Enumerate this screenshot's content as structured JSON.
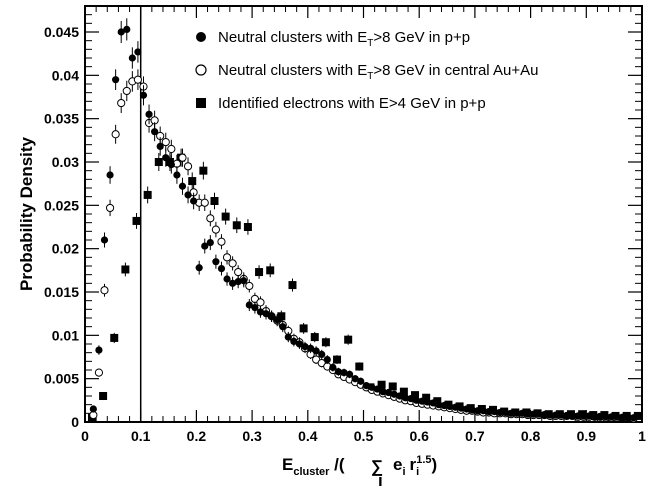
{
  "chart_data": {
    "type": "scatter",
    "title": "",
    "xlabel": "",
    "ylabel": "Probability Density",
    "xlim": [
      0,
      1
    ],
    "ylim": [
      0,
      0.048
    ],
    "x_ticks": [
      "0",
      "0.1",
      "0.2",
      "0.3",
      "0.4",
      "0.5",
      "0.6",
      "0.7",
      "0.8",
      "0.9",
      "1"
    ],
    "y_ticks": [
      "0",
      "0.005",
      "0.01",
      "0.015",
      "0.02",
      "0.025",
      "0.03",
      "0.035",
      "0.04",
      "0.045"
    ],
    "xlabel_parts": {
      "main": "E",
      "main_sub": "cluster",
      "slash": " /(",
      "sum": "∑",
      "sum_sub": "i",
      "e": "e",
      "e_sub": "i",
      "r": "r",
      "r_sub": "i",
      "r_sup": "1.5",
      "close": ")"
    },
    "vertical_line_x": 0.1,
    "legend_position": "top-right",
    "series": [
      {
        "name": "Neutral clusters with E_T>8 GeV in p+p",
        "legend_parts": [
          "Neutral clusters with E",
          "T",
          ">8 GeV in p+p"
        ],
        "marker": "filled-circle",
        "points": [
          [
            0.015,
            0.0015
          ],
          [
            0.025,
            0.0083
          ],
          [
            0.035,
            0.021
          ],
          [
            0.045,
            0.0285
          ],
          [
            0.055,
            0.0395
          ],
          [
            0.065,
            0.045
          ],
          [
            0.075,
            0.0453
          ],
          [
            0.085,
            0.042
          ],
          [
            0.095,
            0.0427
          ],
          [
            0.105,
            0.0377
          ],
          [
            0.115,
            0.0355
          ],
          [
            0.125,
            0.0335
          ],
          [
            0.135,
            0.0318
          ],
          [
            0.145,
            0.0305
          ],
          [
            0.155,
            0.0297
          ],
          [
            0.165,
            0.0285
          ],
          [
            0.175,
            0.0272
          ],
          [
            0.185,
            0.0262
          ],
          [
            0.195,
            0.0255
          ],
          [
            0.205,
            0.0178
          ],
          [
            0.215,
            0.0203
          ],
          [
            0.225,
            0.0207
          ],
          [
            0.235,
            0.0185
          ],
          [
            0.245,
            0.0177
          ],
          [
            0.255,
            0.0165
          ],
          [
            0.265,
            0.016
          ],
          [
            0.275,
            0.0162
          ],
          [
            0.285,
            0.0163
          ],
          [
            0.295,
            0.0135
          ],
          [
            0.305,
            0.0132
          ],
          [
            0.315,
            0.0127
          ],
          [
            0.325,
            0.0125
          ],
          [
            0.335,
            0.0122
          ],
          [
            0.345,
            0.0118
          ],
          [
            0.355,
            0.011
          ],
          [
            0.365,
            0.0098
          ],
          [
            0.375,
            0.0093
          ],
          [
            0.385,
            0.009
          ],
          [
            0.395,
            0.0087
          ],
          [
            0.405,
            0.0085
          ],
          [
            0.415,
            0.0082
          ],
          [
            0.425,
            0.0078
          ],
          [
            0.435,
            0.0072
          ],
          [
            0.445,
            0.0063
          ],
          [
            0.455,
            0.0058
          ],
          [
            0.465,
            0.0057
          ],
          [
            0.475,
            0.0055
          ],
          [
            0.485,
            0.005
          ],
          [
            0.495,
            0.0047
          ],
          [
            0.505,
            0.0042
          ],
          [
            0.515,
            0.004
          ],
          [
            0.525,
            0.0038
          ],
          [
            0.535,
            0.0035
          ],
          [
            0.545,
            0.0034
          ],
          [
            0.555,
            0.0032
          ],
          [
            0.565,
            0.003
          ],
          [
            0.575,
            0.0028
          ],
          [
            0.585,
            0.0027
          ],
          [
            0.595,
            0.0025
          ],
          [
            0.605,
            0.0024
          ],
          [
            0.615,
            0.0023
          ],
          [
            0.625,
            0.0022
          ],
          [
            0.635,
            0.002
          ],
          [
            0.645,
            0.0019
          ],
          [
            0.655,
            0.0018
          ],
          [
            0.665,
            0.0017
          ],
          [
            0.675,
            0.0016
          ],
          [
            0.685,
            0.0015
          ],
          [
            0.695,
            0.0014
          ],
          [
            0.705,
            0.0013
          ],
          [
            0.715,
            0.0013
          ],
          [
            0.725,
            0.0012
          ],
          [
            0.735,
            0.0012
          ],
          [
            0.745,
            0.0011
          ],
          [
            0.755,
            0.0011
          ],
          [
            0.765,
            0.001
          ],
          [
            0.775,
            0.001
          ],
          [
            0.785,
            0.001
          ],
          [
            0.795,
            0.0009
          ],
          [
            0.805,
            0.0009
          ],
          [
            0.815,
            0.0009
          ],
          [
            0.825,
            0.0008
          ],
          [
            0.835,
            0.0008
          ],
          [
            0.845,
            0.0008
          ],
          [
            0.855,
            0.0008
          ],
          [
            0.865,
            0.0007
          ],
          [
            0.875,
            0.0007
          ],
          [
            0.885,
            0.0007
          ],
          [
            0.895,
            0.0007
          ],
          [
            0.905,
            0.0007
          ],
          [
            0.915,
            0.0006
          ],
          [
            0.925,
            0.0006
          ],
          [
            0.935,
            0.0006
          ],
          [
            0.945,
            0.0006
          ],
          [
            0.955,
            0.0006
          ],
          [
            0.965,
            0.0005
          ],
          [
            0.975,
            0.0005
          ],
          [
            0.985,
            0.0005
          ]
        ]
      },
      {
        "name": "Neutral clusters with E_T>8 GeV in central Au+Au",
        "legend_parts": [
          "Neutral clusters with E",
          "T",
          ">8 GeV in central Au+Au"
        ],
        "marker": "open-circle",
        "points": [
          [
            0.015,
            0.0008
          ],
          [
            0.025,
            0.0057
          ],
          [
            0.035,
            0.0152
          ],
          [
            0.045,
            0.0247
          ],
          [
            0.055,
            0.0332
          ],
          [
            0.065,
            0.0368
          ],
          [
            0.075,
            0.0382
          ],
          [
            0.085,
            0.0393
          ],
          [
            0.095,
            0.0395
          ],
          [
            0.105,
            0.0387
          ],
          [
            0.115,
            0.0345
          ],
          [
            0.125,
            0.0348
          ],
          [
            0.135,
            0.033
          ],
          [
            0.145,
            0.0323
          ],
          [
            0.155,
            0.0315
          ],
          [
            0.165,
            0.0298
          ],
          [
            0.175,
            0.0305
          ],
          [
            0.185,
            0.0295
          ],
          [
            0.195,
            0.0265
          ],
          [
            0.205,
            0.0253
          ],
          [
            0.215,
            0.0253
          ],
          [
            0.225,
            0.0235
          ],
          [
            0.235,
            0.0222
          ],
          [
            0.245,
            0.0208
          ],
          [
            0.255,
            0.019
          ],
          [
            0.265,
            0.0183
          ],
          [
            0.275,
            0.0173
          ],
          [
            0.285,
            0.0165
          ],
          [
            0.295,
            0.0157
          ],
          [
            0.305,
            0.0142
          ],
          [
            0.315,
            0.0138
          ],
          [
            0.325,
            0.0128
          ],
          [
            0.335,
            0.0122
          ],
          [
            0.345,
            0.0117
          ],
          [
            0.355,
            0.0112
          ],
          [
            0.365,
            0.0105
          ],
          [
            0.375,
            0.0096
          ],
          [
            0.385,
            0.0092
          ],
          [
            0.395,
            0.0085
          ],
          [
            0.405,
            0.0078
          ],
          [
            0.415,
            0.0072
          ],
          [
            0.425,
            0.0068
          ],
          [
            0.435,
            0.0064
          ],
          [
            0.445,
            0.006
          ],
          [
            0.455,
            0.0055
          ],
          [
            0.465,
            0.0052
          ],
          [
            0.475,
            0.0049
          ],
          [
            0.485,
            0.0046
          ],
          [
            0.495,
            0.0043
          ],
          [
            0.505,
            0.004
          ],
          [
            0.515,
            0.0037
          ],
          [
            0.525,
            0.0035
          ],
          [
            0.535,
            0.0033
          ],
          [
            0.545,
            0.0031
          ],
          [
            0.555,
            0.0029
          ],
          [
            0.565,
            0.0027
          ],
          [
            0.575,
            0.0025
          ],
          [
            0.585,
            0.0024
          ],
          [
            0.595,
            0.0022
          ],
          [
            0.605,
            0.0021
          ],
          [
            0.615,
            0.002
          ],
          [
            0.625,
            0.0019
          ],
          [
            0.635,
            0.0018
          ],
          [
            0.645,
            0.0017
          ],
          [
            0.655,
            0.0016
          ],
          [
            0.665,
            0.0015
          ],
          [
            0.675,
            0.0014
          ],
          [
            0.685,
            0.0013
          ],
          [
            0.695,
            0.0013
          ],
          [
            0.705,
            0.0012
          ],
          [
            0.715,
            0.0011
          ],
          [
            0.725,
            0.0011
          ],
          [
            0.735,
            0.001
          ],
          [
            0.745,
            0.001
          ],
          [
            0.755,
            0.001
          ],
          [
            0.765,
            0.0009
          ],
          [
            0.775,
            0.0009
          ],
          [
            0.785,
            0.0009
          ],
          [
            0.795,
            0.0008
          ],
          [
            0.805,
            0.0008
          ],
          [
            0.815,
            0.0008
          ],
          [
            0.825,
            0.0008
          ],
          [
            0.835,
            0.0007
          ],
          [
            0.845,
            0.0007
          ],
          [
            0.855,
            0.0007
          ],
          [
            0.865,
            0.0007
          ],
          [
            0.875,
            0.0007
          ],
          [
            0.885,
            0.0006
          ],
          [
            0.895,
            0.0006
          ],
          [
            0.905,
            0.0006
          ],
          [
            0.915,
            0.0006
          ],
          [
            0.925,
            0.0006
          ],
          [
            0.935,
            0.0005
          ],
          [
            0.945,
            0.0005
          ],
          [
            0.955,
            0.0005
          ],
          [
            0.965,
            0.0005
          ],
          [
            0.975,
            0.0005
          ],
          [
            0.985,
            0.0004
          ]
        ]
      },
      {
        "name": "Identified electrons with E>4 GeV in p+p",
        "legend_parts": [
          "Identified electrons with E>4 GeV in p+p"
        ],
        "marker": "filled-square",
        "points": [
          [
            0.0125,
            0.0005
          ],
          [
            0.0325,
            0.003
          ],
          [
            0.0525,
            0.0097
          ],
          [
            0.0725,
            0.0176
          ],
          [
            0.0925,
            0.0232
          ],
          [
            0.1125,
            0.0262
          ],
          [
            0.1325,
            0.03
          ],
          [
            0.1525,
            0.03
          ],
          [
            0.1725,
            0.0305
          ],
          [
            0.1925,
            0.0278
          ],
          [
            0.2125,
            0.029
          ],
          [
            0.2325,
            0.0255
          ],
          [
            0.2525,
            0.0237
          ],
          [
            0.2725,
            0.0227
          ],
          [
            0.2925,
            0.0225
          ],
          [
            0.3125,
            0.0173
          ],
          [
            0.3325,
            0.0175
          ],
          [
            0.3525,
            0.0122
          ],
          [
            0.3725,
            0.0158
          ],
          [
            0.3925,
            0.0108
          ],
          [
            0.4125,
            0.0098
          ],
          [
            0.4325,
            0.0092
          ],
          [
            0.4525,
            0.0072
          ],
          [
            0.4725,
            0.0095
          ],
          [
            0.4925,
            0.0064
          ],
          [
            0.5125,
            0.004
          ],
          [
            0.5325,
            0.0043
          ],
          [
            0.5525,
            0.0041
          ],
          [
            0.5725,
            0.0035
          ],
          [
            0.5925,
            0.0031
          ],
          [
            0.6125,
            0.0028
          ],
          [
            0.6325,
            0.0024
          ],
          [
            0.6525,
            0.002
          ],
          [
            0.6725,
            0.0018
          ],
          [
            0.6925,
            0.0016
          ],
          [
            0.7125,
            0.0015
          ],
          [
            0.7325,
            0.0014
          ],
          [
            0.7525,
            0.0012
          ],
          [
            0.7725,
            0.0011
          ],
          [
            0.7925,
            0.0011
          ],
          [
            0.8125,
            0.001
          ],
          [
            0.8325,
            0.0009
          ],
          [
            0.8525,
            0.0009
          ],
          [
            0.8725,
            0.0009
          ],
          [
            0.8925,
            0.0009
          ],
          [
            0.9125,
            0.0008
          ],
          [
            0.9325,
            0.0008
          ],
          [
            0.9525,
            0.0007
          ],
          [
            0.9725,
            0.0007
          ],
          [
            0.9925,
            0.0007
          ]
        ]
      }
    ]
  }
}
